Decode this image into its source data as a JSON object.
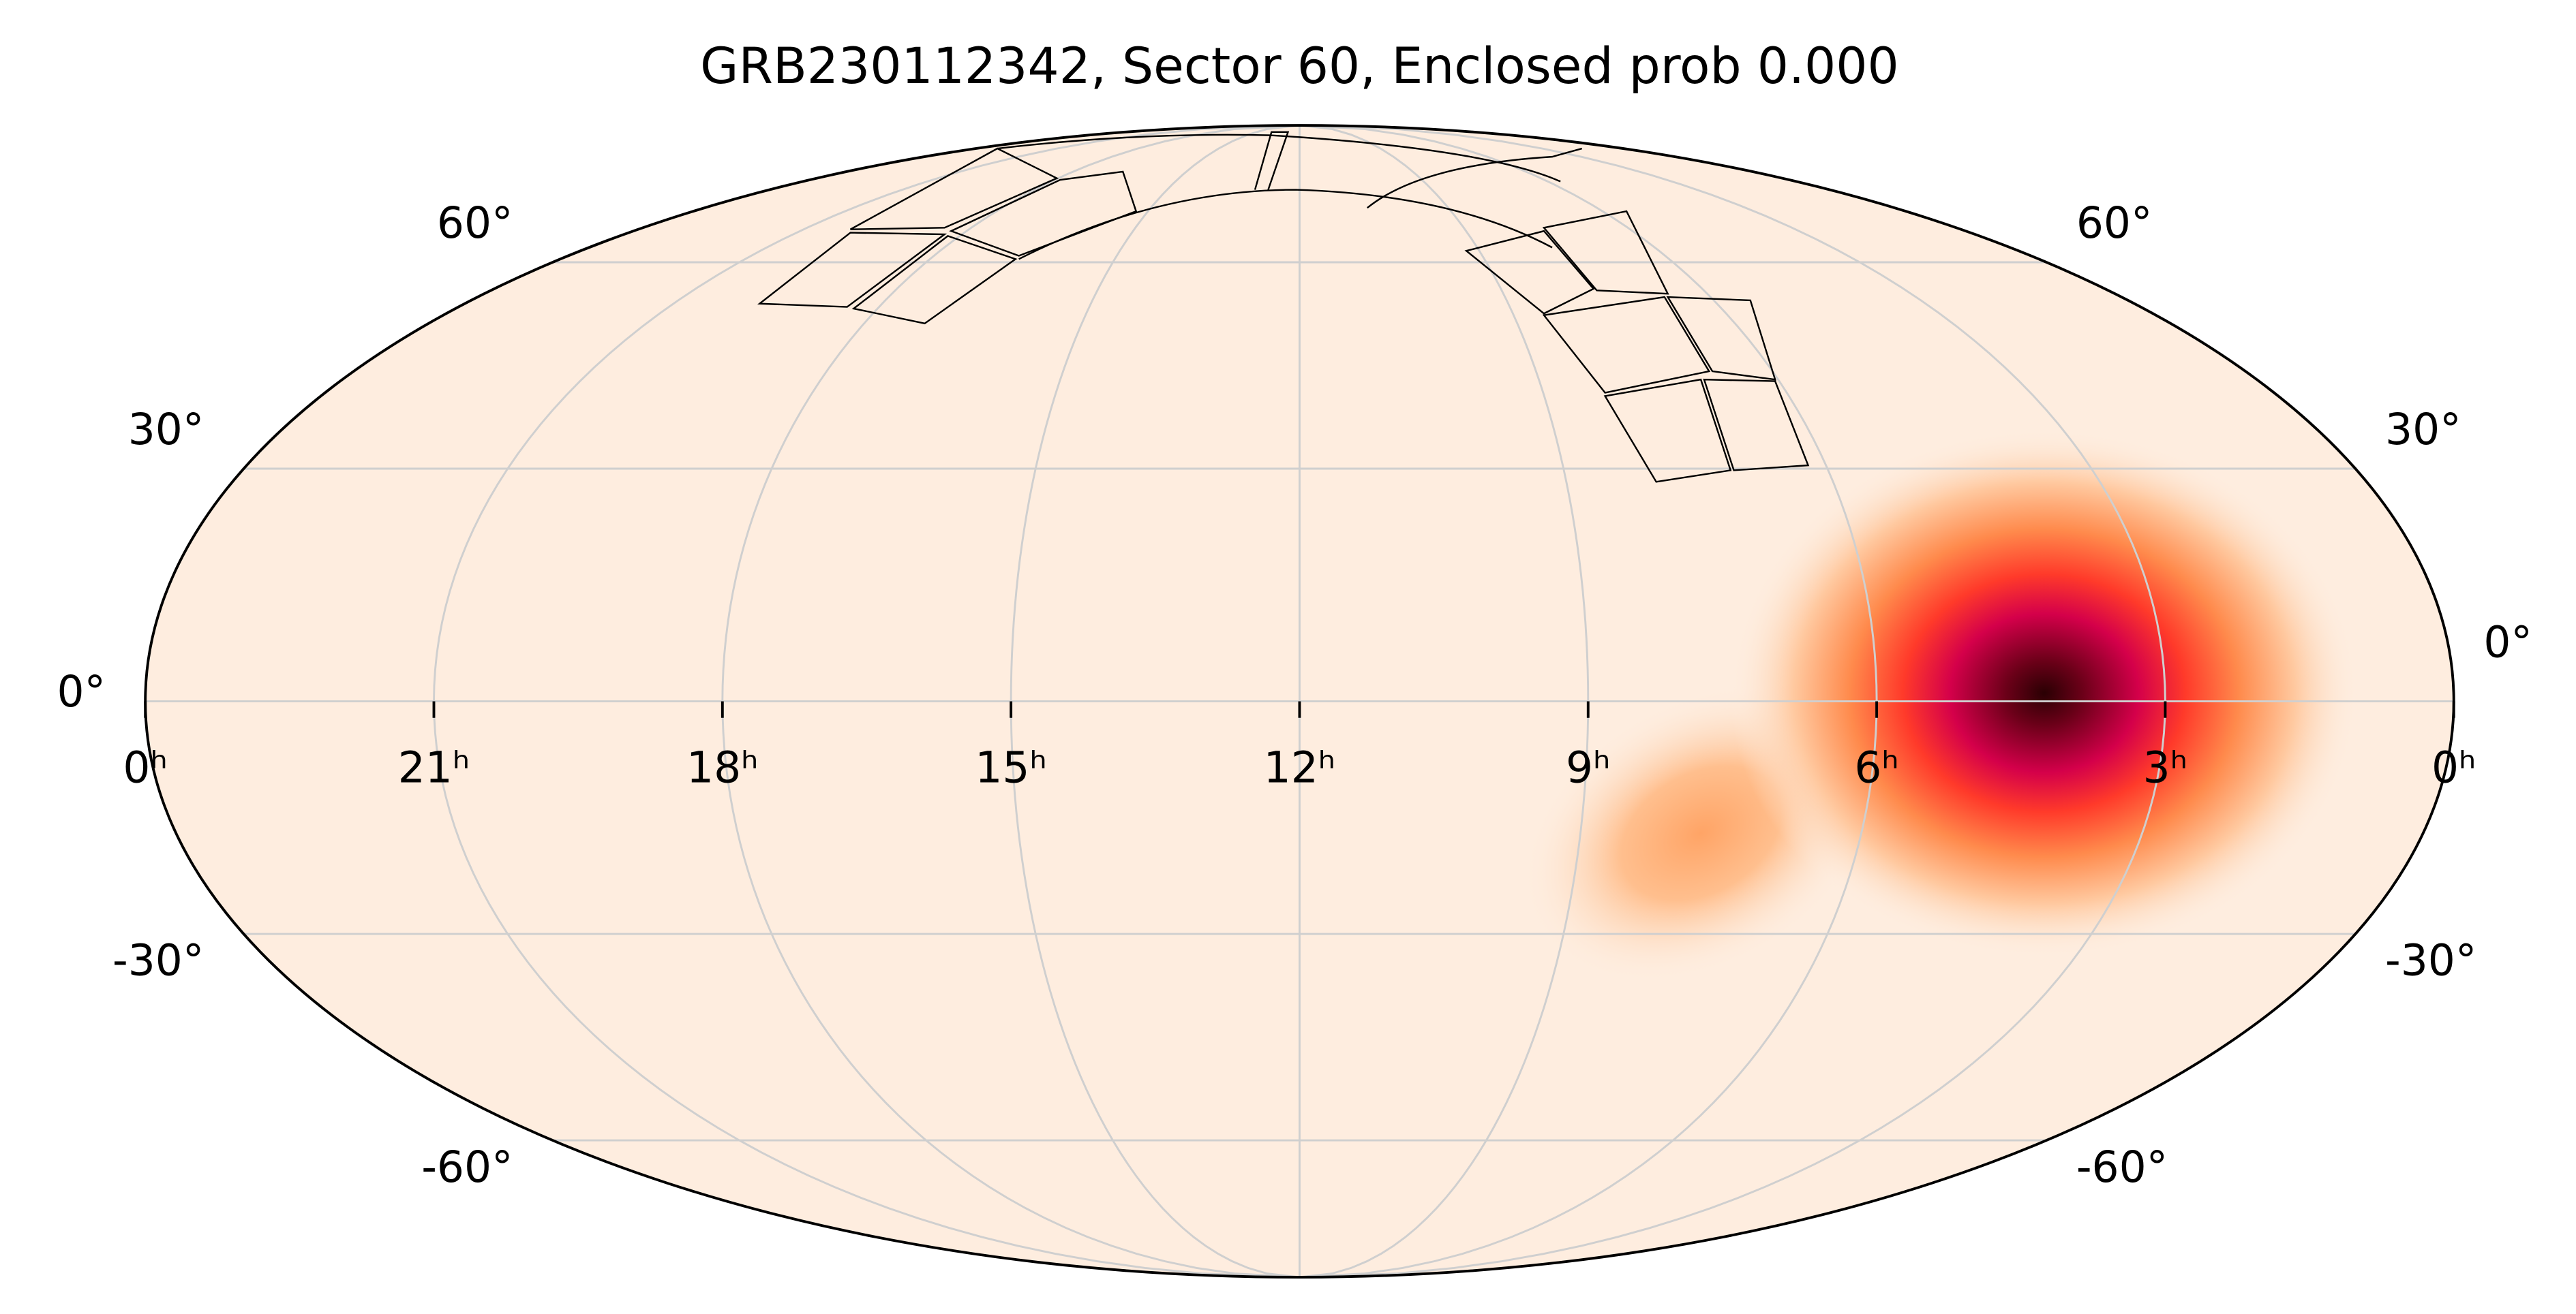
{
  "chart_data": {
    "type": "mollweide",
    "title": "GRB230112342, Sector 60, Enclosed prob 0.000",
    "xlim": [
      24,
      0
    ],
    "xticks": [
      {
        "value": 24,
        "label": "0ʰ"
      },
      {
        "value": 21,
        "label": "21ʰ"
      },
      {
        "value": 18,
        "label": "18ʰ"
      },
      {
        "value": 15,
        "label": "15ʰ"
      },
      {
        "value": 12,
        "label": "12ʰ"
      },
      {
        "value": 9,
        "label": "9ʰ"
      },
      {
        "value": 6,
        "label": "6ʰ"
      },
      {
        "value": 3,
        "label": "3ʰ"
      },
      {
        "value": 0,
        "label": "0ʰ"
      }
    ],
    "ylim": [
      -90,
      90
    ],
    "yticks": [
      {
        "value": -60,
        "label": "-60°"
      },
      {
        "value": -30,
        "label": "-30°"
      },
      {
        "value": 0,
        "label": "0°"
      },
      {
        "value": 30,
        "label": "30°"
      },
      {
        "value": 60,
        "label": "60°"
      }
    ],
    "grid": true
  }
}
